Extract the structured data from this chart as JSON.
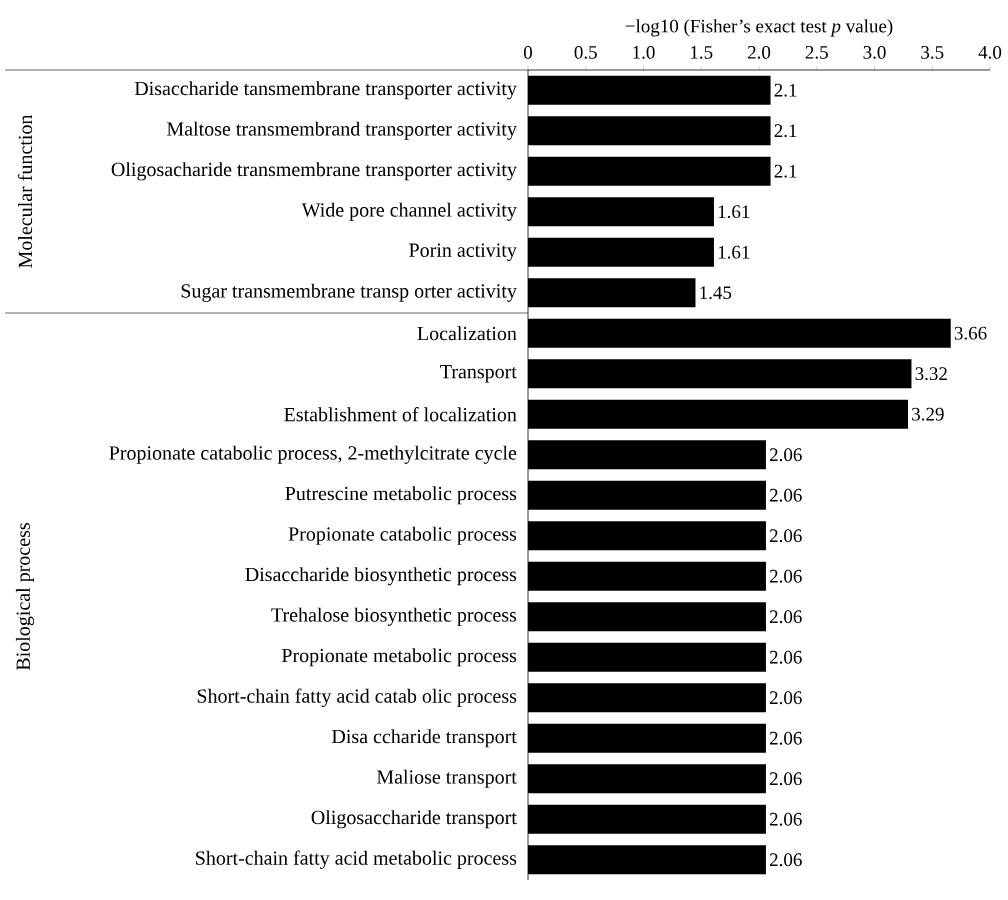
{
  "chart_data": {
    "type": "bar",
    "orientation": "horizontal",
    "xlabel": "−log10 (Fisher’s exact test *p* value)",
    "categories": [
      "Disaccharide tansmembrane transporter activity",
      "Maltose transmembrand transporter activity",
      "Oligosacharide transmembrane transporter activity",
      "Wide pore channel activity",
      "Porin activity",
      "Sugar transmembrane transp orter activity",
      "Localization",
      "Transport",
      "Establishment of localization",
      "Propionate catabolic process, 2-methylcitrate cycle",
      "Putrescine metabolic process",
      "Propionate catabolic process",
      "Disaccharide biosynthetic process",
      "Trehalose biosynthetic process",
      "Propionate metabolic process",
      "Short-chain fatty acid catab olic process",
      "Disa ccharide transport",
      "Maliose transport",
      "Oligosaccharide transport",
      "Short-chain fatty acid metabolic process"
    ],
    "values": [
      2.1,
      2.1,
      2.1,
      1.61,
      1.61,
      1.45,
      3.66,
      3.32,
      3.29,
      2.06,
      2.06,
      2.06,
      2.06,
      2.06,
      2.06,
      2.06,
      2.06,
      2.06,
      2.06,
      2.06
    ],
    "color": "#000000",
    "xlim": [
      0,
      4
    ],
    "xticks": [
      0,
      0.5,
      {
        "value": 1,
        "label": "1.0"
      },
      1.5,
      {
        "value": 2,
        "label": "2.0"
      },
      2.5,
      {
        "value": 3,
        "label": "3.0"
      },
      3.5,
      {
        "value": 4,
        "label": "4.0"
      }
    ],
    "data_labels": true,
    "annotations": [
      "Molecular function",
      "Biological process"
    ]
  }
}
